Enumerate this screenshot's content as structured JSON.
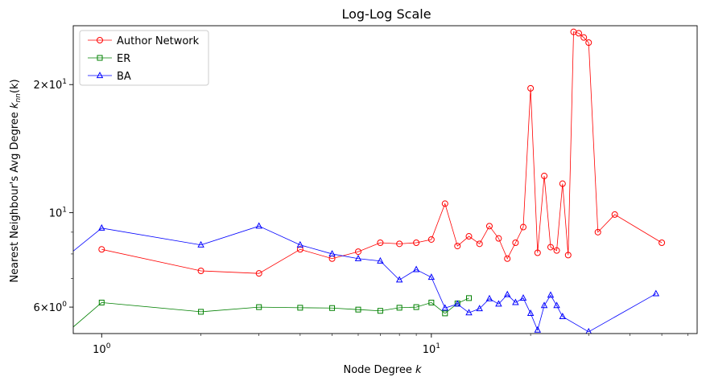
{
  "chart_data": {
    "type": "line",
    "title": "Log-Log Scale",
    "xlabel": "Node Degree",
    "xlabel_var": "k",
    "ylabel": "Nearest Neighbour's Avg Degree",
    "ylabel_var": "k",
    "ylabel_sub": "nn",
    "ylabel_arg": "(k)",
    "x_scale": "log",
    "y_scale": "log",
    "xlim": [
      0.82,
      64
    ],
    "ylim": [
      5.2,
      27.5
    ],
    "grid": false,
    "legend_position": "top-left",
    "x_ticks": [
      {
        "value": 1,
        "base": "10",
        "exp": "0"
      },
      {
        "value": 10,
        "base": "10",
        "exp": "1"
      }
    ],
    "y_ticks": [
      {
        "value": 6,
        "mant": "6",
        "base": "10",
        "exp": "0"
      },
      {
        "value": 10,
        "mant": "",
        "base": "10",
        "exp": "1"
      },
      {
        "value": 20,
        "mant": "2",
        "base": "10",
        "exp": "1"
      }
    ],
    "x_minor_ticks": [
      2,
      3,
      4,
      5,
      6,
      7,
      8,
      9,
      20,
      30,
      40,
      50,
      60
    ],
    "y_minor_ticks": [
      7,
      8,
      9
    ],
    "series": [
      {
        "name": "Author Network",
        "color": "#ff0000",
        "marker": "circle",
        "x": [
          1,
          2,
          3,
          4,
          5,
          6,
          7,
          8,
          9,
          10,
          11,
          12,
          13,
          14,
          15,
          16,
          17,
          18,
          19,
          20,
          21,
          22,
          23,
          24,
          25,
          26,
          27,
          28,
          29,
          30,
          32,
          36,
          50
        ],
        "y": [
          8.2,
          7.3,
          7.2,
          8.2,
          7.8,
          8.1,
          8.5,
          8.45,
          8.5,
          8.65,
          10.5,
          8.35,
          8.8,
          8.45,
          9.3,
          8.7,
          7.8,
          8.5,
          9.25,
          19.6,
          8.05,
          12.2,
          8.3,
          8.15,
          11.7,
          7.95,
          26.6,
          26.4,
          25.8,
          25.1,
          9.0,
          9.9,
          8.5
        ]
      },
      {
        "name": "ER",
        "color": "#008000",
        "marker": "square",
        "x": [
          0.8,
          1,
          2,
          3,
          4,
          5,
          6,
          7,
          8,
          9,
          10,
          11,
          12,
          13
        ],
        "y": [
          5.3,
          6.15,
          5.85,
          6.0,
          5.98,
          5.97,
          5.92,
          5.88,
          5.98,
          6.0,
          6.15,
          5.8,
          6.12,
          6.3
        ]
      },
      {
        "name": "BA",
        "color": "#0000ff",
        "marker": "triangle",
        "x": [
          0.8,
          1,
          2,
          3,
          4,
          5,
          6,
          7,
          8,
          9,
          10,
          11,
          12,
          13,
          14,
          15,
          16,
          17,
          18,
          19,
          20,
          21,
          22,
          23,
          24,
          25,
          30,
          48
        ],
        "y": [
          8.0,
          9.2,
          8.4,
          9.3,
          8.4,
          8.0,
          7.8,
          7.7,
          6.95,
          7.35,
          7.05,
          5.97,
          6.1,
          5.82,
          5.95,
          6.28,
          6.1,
          6.42,
          6.15,
          6.3,
          5.8,
          5.3,
          6.05,
          6.4,
          6.05,
          5.7,
          5.25,
          6.45
        ]
      }
    ]
  }
}
